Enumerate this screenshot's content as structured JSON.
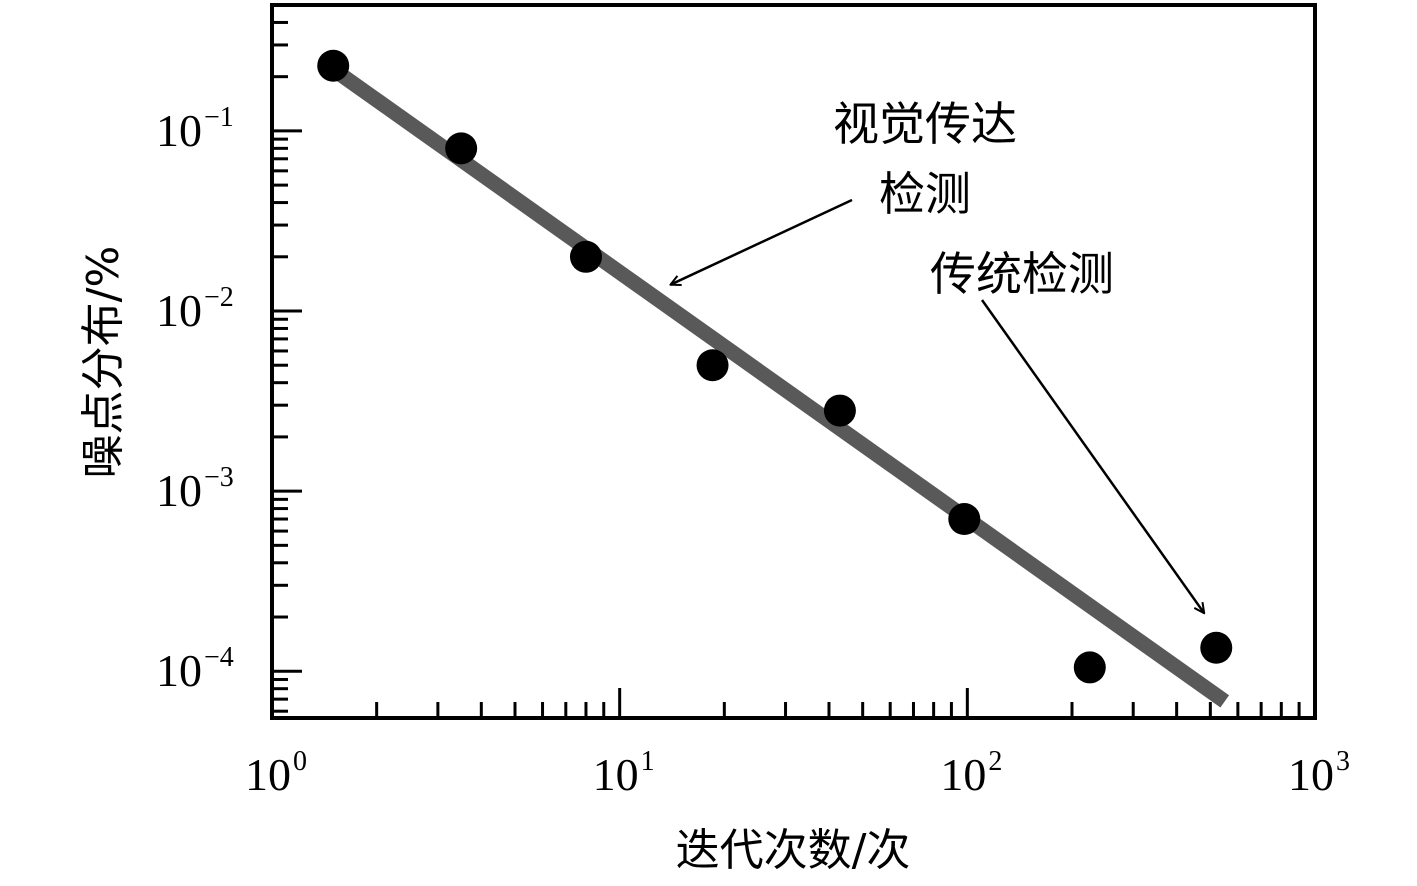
{
  "chart_data": {
    "type": "scatter",
    "title": "",
    "xlabel": "迭代次数/次",
    "ylabel": "噪点分布/%",
    "xscale": "log",
    "yscale": "log",
    "xlim": [
      1,
      1000
    ],
    "ylim": [
      5.5e-05,
      0.5
    ],
    "grid": false,
    "x_ticks": [
      {
        "value": 1,
        "base": "10",
        "exp": "0"
      },
      {
        "value": 10,
        "base": "10",
        "exp": "1"
      },
      {
        "value": 100,
        "base": "10",
        "exp": "2"
      },
      {
        "value": 1000,
        "base": "10",
        "exp": "3"
      }
    ],
    "y_ticks": [
      {
        "value": 0.1,
        "base": "10",
        "exp": "−1"
      },
      {
        "value": 0.01,
        "base": "10",
        "exp": "−2"
      },
      {
        "value": 0.001,
        "base": "10",
        "exp": "−3"
      },
      {
        "value": 0.0001,
        "base": "10",
        "exp": "−4"
      }
    ],
    "series": [
      {
        "kind": "points",
        "color": "#000000",
        "x": [
          1.5,
          3.5,
          8,
          18.5,
          43,
          98,
          225,
          520
        ],
        "y": [
          0.23,
          0.08,
          0.02,
          0.005,
          0.0028,
          0.0007,
          0.000105,
          0.000135
        ]
      },
      {
        "kind": "fit-line",
        "color": "#595959",
        "x": [
          1.5,
          550
        ],
        "y": [
          0.22,
          6.8e-05
        ]
      }
    ],
    "annotations": [
      {
        "lines": [
          "视觉传达",
          "检测"
        ],
        "arrow_to": {
          "x": 14,
          "y": 0.014
        }
      },
      {
        "lines": [
          "传统检测"
        ],
        "arrow_to": {
          "x": 480,
          "y": 0.00021
        }
      }
    ]
  }
}
